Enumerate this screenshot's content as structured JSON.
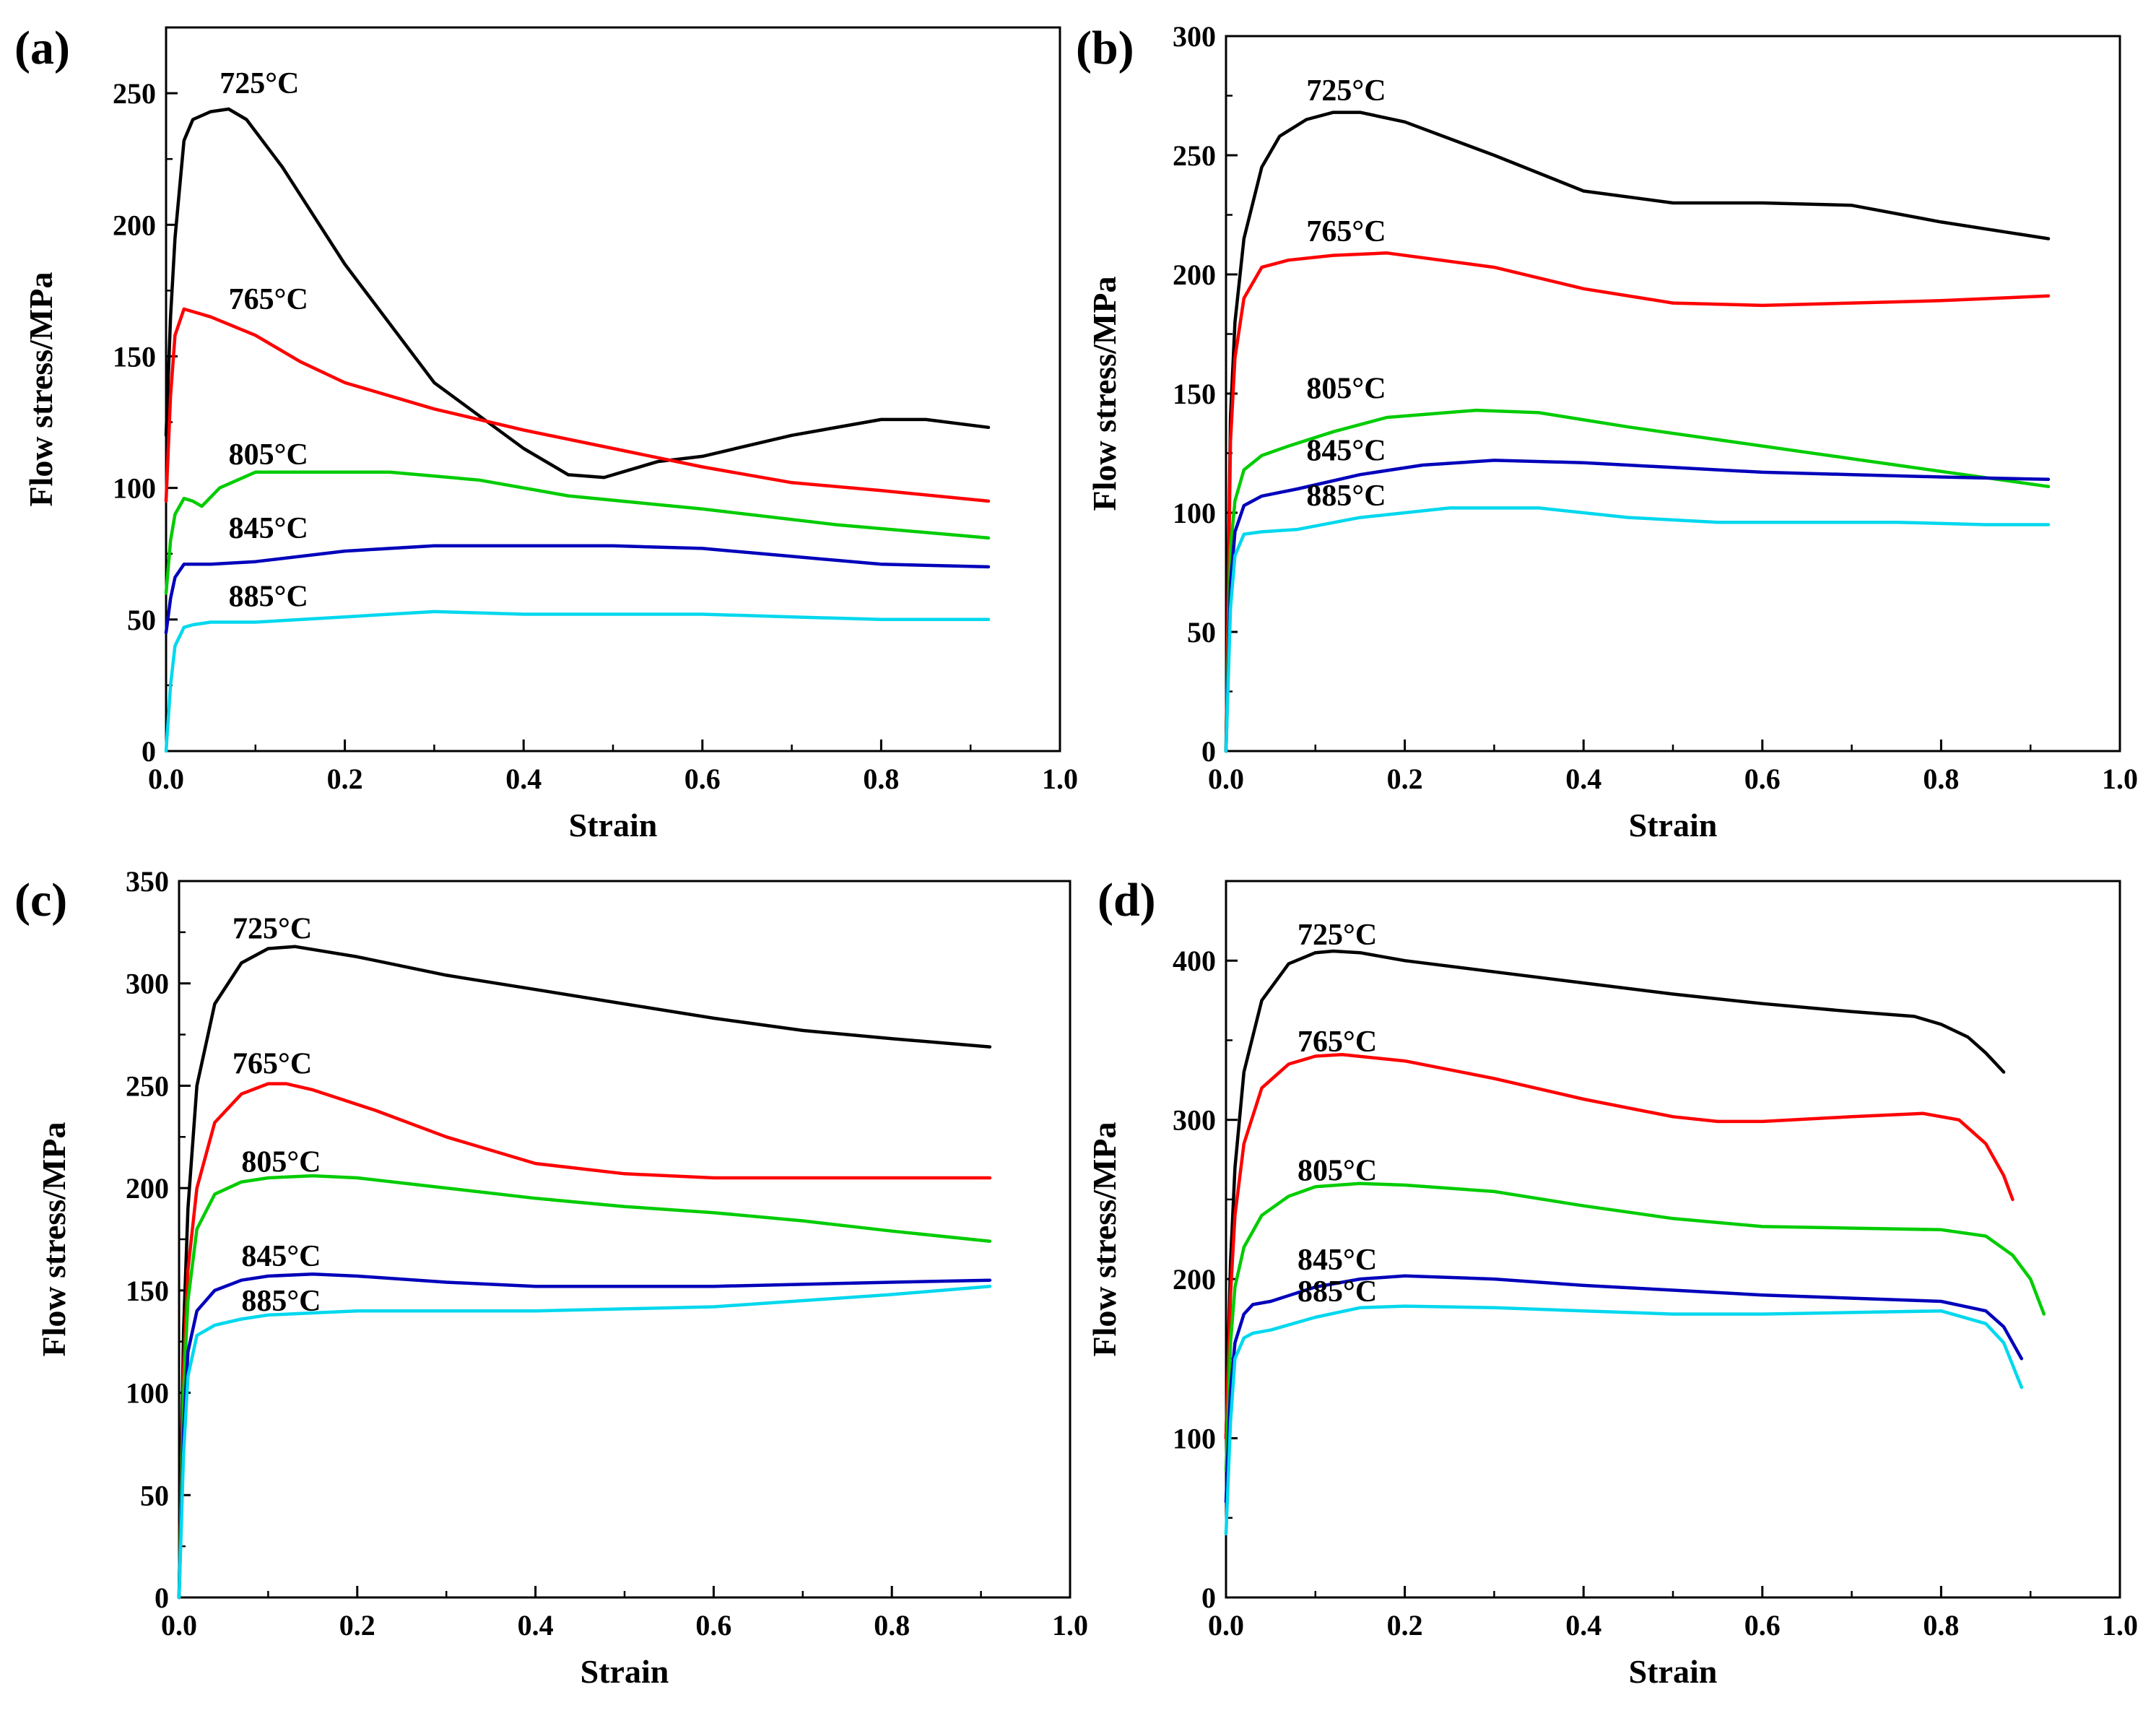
{
  "chart_data": [
    {
      "panel": "(a)",
      "type": "line",
      "xlabel": "Strain",
      "ylabel": "Flow stress/MPa",
      "xlim": [
        0,
        1.0
      ],
      "ylim": [
        0,
        275
      ],
      "xticks": [
        "0.0",
        "0.2",
        "0.4",
        "0.6",
        "0.8",
        "1.0"
      ],
      "xtick_values": [
        0,
        0.2,
        0.4,
        0.6,
        0.8,
        1.0
      ],
      "yticks": [
        "0",
        "50",
        "100",
        "150",
        "200",
        "250"
      ],
      "ytick_values": [
        0,
        50,
        100,
        150,
        200,
        250
      ],
      "series": [
        {
          "name": "725°C",
          "color": "#000000",
          "label_at": [
            0.06,
            250
          ],
          "x": [
            0,
            0.005,
            0.01,
            0.02,
            0.03,
            0.05,
            0.07,
            0.09,
            0.13,
            0.2,
            0.3,
            0.4,
            0.45,
            0.49,
            0.55,
            0.6,
            0.7,
            0.8,
            0.85,
            0.92
          ],
          "y": [
            120,
            165,
            195,
            232,
            240,
            243,
            244,
            240,
            222,
            185,
            140,
            115,
            105,
            104,
            110,
            112,
            120,
            126,
            126,
            123
          ]
        },
        {
          "name": "765°C",
          "color": "#ff0000",
          "label_at": [
            0.07,
            168
          ],
          "x": [
            0,
            0.005,
            0.01,
            0.02,
            0.03,
            0.05,
            0.1,
            0.15,
            0.2,
            0.3,
            0.4,
            0.5,
            0.6,
            0.7,
            0.8,
            0.92
          ],
          "y": [
            95,
            135,
            158,
            168,
            167,
            165,
            158,
            148,
            140,
            130,
            122,
            115,
            108,
            102,
            99,
            95
          ]
        },
        {
          "name": "805°C",
          "color": "#00cc00",
          "label_at": [
            0.07,
            109
          ],
          "x": [
            0,
            0.005,
            0.01,
            0.02,
            0.03,
            0.04,
            0.06,
            0.1,
            0.15,
            0.25,
            0.35,
            0.45,
            0.6,
            0.75,
            0.92
          ],
          "y": [
            60,
            80,
            90,
            96,
            95,
            93,
            100,
            106,
            106,
            106,
            103,
            97,
            92,
            86,
            81
          ]
        },
        {
          "name": "845°C",
          "color": "#0000bb",
          "label_at": [
            0.07,
            81
          ],
          "x": [
            0,
            0.005,
            0.01,
            0.02,
            0.05,
            0.1,
            0.2,
            0.3,
            0.4,
            0.5,
            0.6,
            0.7,
            0.8,
            0.92
          ],
          "y": [
            45,
            58,
            66,
            71,
            71,
            72,
            76,
            78,
            78,
            78,
            77,
            74,
            71,
            70
          ]
        },
        {
          "name": "885°C",
          "color": "#00d8ee",
          "label_at": [
            0.07,
            55
          ],
          "x": [
            0,
            0.005,
            0.01,
            0.02,
            0.03,
            0.05,
            0.1,
            0.2,
            0.3,
            0.4,
            0.5,
            0.6,
            0.7,
            0.8,
            0.92
          ],
          "y": [
            0,
            25,
            40,
            47,
            48,
            49,
            49,
            51,
            53,
            52,
            52,
            52,
            51,
            50,
            50
          ]
        }
      ]
    },
    {
      "panel": "(b)",
      "type": "line",
      "xlabel": "Strain",
      "ylabel": "Flow stress/MPa",
      "xlim": [
        0,
        1.0
      ],
      "ylim": [
        0,
        300
      ],
      "xticks": [
        "0.0",
        "0.2",
        "0.4",
        "0.6",
        "0.8",
        "1.0"
      ],
      "xtick_values": [
        0,
        0.2,
        0.4,
        0.6,
        0.8,
        1.0
      ],
      "yticks": [
        "0",
        "50",
        "100",
        "150",
        "200",
        "250",
        "300"
      ],
      "ytick_values": [
        0,
        50,
        100,
        150,
        200,
        250,
        300
      ],
      "series": [
        {
          "name": "725°C",
          "color": "#000000",
          "label_at": [
            0.09,
            273
          ],
          "x": [
            0,
            0.005,
            0.01,
            0.02,
            0.04,
            0.06,
            0.09,
            0.12,
            0.15,
            0.2,
            0.3,
            0.4,
            0.5,
            0.6,
            0.7,
            0.8,
            0.92
          ],
          "y": [
            0,
            140,
            180,
            215,
            245,
            258,
            265,
            268,
            268,
            264,
            250,
            235,
            230,
            230,
            229,
            222,
            215
          ]
        },
        {
          "name": "765°C",
          "color": "#ff0000",
          "label_at": [
            0.09,
            214
          ],
          "x": [
            0,
            0.005,
            0.01,
            0.02,
            0.04,
            0.07,
            0.12,
            0.18,
            0.3,
            0.4,
            0.5,
            0.6,
            0.7,
            0.8,
            0.92
          ],
          "y": [
            0,
            130,
            165,
            190,
            203,
            206,
            208,
            209,
            203,
            194,
            188,
            187,
            188,
            189,
            191
          ]
        },
        {
          "name": "805°C",
          "color": "#00cc00",
          "label_at": [
            0.09,
            148
          ],
          "x": [
            0,
            0.005,
            0.01,
            0.02,
            0.04,
            0.07,
            0.12,
            0.18,
            0.28,
            0.35,
            0.45,
            0.6,
            0.75,
            0.92
          ],
          "y": [
            0,
            85,
            105,
            118,
            124,
            128,
            134,
            140,
            143,
            142,
            136,
            128,
            120,
            111
          ]
        },
        {
          "name": "845°C",
          "color": "#0000bb",
          "label_at": [
            0.09,
            122
          ],
          "x": [
            0,
            0.005,
            0.01,
            0.02,
            0.04,
            0.08,
            0.15,
            0.22,
            0.3,
            0.4,
            0.5,
            0.6,
            0.7,
            0.8,
            0.92
          ],
          "y": [
            0,
            70,
            92,
            103,
            107,
            110,
            116,
            120,
            122,
            121,
            119,
            117,
            116,
            115,
            114
          ]
        },
        {
          "name": "885°C",
          "color": "#00d8ee",
          "label_at": [
            0.09,
            103
          ],
          "x": [
            0,
            0.005,
            0.01,
            0.02,
            0.04,
            0.08,
            0.15,
            0.25,
            0.35,
            0.45,
            0.55,
            0.65,
            0.75,
            0.85,
            0.92
          ],
          "y": [
            0,
            60,
            82,
            91,
            92,
            93,
            98,
            102,
            102,
            98,
            96,
            96,
            96,
            95,
            95
          ]
        }
      ]
    },
    {
      "panel": "(c)",
      "type": "line",
      "xlabel": "Strain",
      "ylabel": "Flow stress/MPa",
      "xlim": [
        0,
        1.0
      ],
      "ylim": [
        0,
        350
      ],
      "xticks": [
        "0.0",
        "0.2",
        "0.4",
        "0.6",
        "0.8",
        "1.0"
      ],
      "xtick_values": [
        0,
        0.2,
        0.4,
        0.6,
        0.8,
        1.0
      ],
      "yticks": [
        "0",
        "50",
        "100",
        "150",
        "200",
        "250",
        "300",
        "350"
      ],
      "ytick_values": [
        0,
        50,
        100,
        150,
        200,
        250,
        300,
        350
      ],
      "series": [
        {
          "name": "725°C",
          "color": "#000000",
          "label_at": [
            0.06,
            322
          ],
          "x": [
            0,
            0.005,
            0.01,
            0.02,
            0.04,
            0.07,
            0.1,
            0.13,
            0.2,
            0.3,
            0.4,
            0.5,
            0.6,
            0.7,
            0.8,
            0.91
          ],
          "y": [
            0,
            130,
            190,
            250,
            290,
            310,
            317,
            318,
            313,
            304,
            297,
            290,
            283,
            277,
            273,
            269
          ]
        },
        {
          "name": "765°C",
          "color": "#ff0000",
          "label_at": [
            0.06,
            256
          ],
          "x": [
            0,
            0.005,
            0.01,
            0.02,
            0.04,
            0.07,
            0.1,
            0.12,
            0.15,
            0.22,
            0.3,
            0.4,
            0.5,
            0.6,
            0.7,
            0.8,
            0.91
          ],
          "y": [
            0,
            110,
            160,
            200,
            232,
            246,
            251,
            251,
            248,
            238,
            225,
            212,
            207,
            205,
            205,
            205,
            205
          ]
        },
        {
          "name": "805°C",
          "color": "#00cc00",
          "label_at": [
            0.07,
            208
          ],
          "x": [
            0,
            0.005,
            0.01,
            0.02,
            0.04,
            0.07,
            0.1,
            0.15,
            0.2,
            0.3,
            0.4,
            0.5,
            0.6,
            0.7,
            0.8,
            0.91
          ],
          "y": [
            0,
            100,
            145,
            180,
            197,
            203,
            205,
            206,
            205,
            200,
            195,
            191,
            188,
            184,
            179,
            174
          ]
        },
        {
          "name": "845°C",
          "color": "#0000bb",
          "label_at": [
            0.07,
            162
          ],
          "x": [
            0,
            0.005,
            0.01,
            0.02,
            0.04,
            0.07,
            0.1,
            0.15,
            0.2,
            0.3,
            0.4,
            0.5,
            0.6,
            0.7,
            0.8,
            0.91
          ],
          "y": [
            0,
            80,
            120,
            140,
            150,
            155,
            157,
            158,
            157,
            154,
            152,
            152,
            152,
            153,
            154,
            155
          ]
        },
        {
          "name": "885°C",
          "color": "#00d8ee",
          "label_at": [
            0.07,
            140
          ],
          "x": [
            0,
            0.005,
            0.01,
            0.02,
            0.04,
            0.07,
            0.1,
            0.15,
            0.2,
            0.3,
            0.4,
            0.5,
            0.6,
            0.7,
            0.8,
            0.91
          ],
          "y": [
            0,
            70,
            108,
            128,
            133,
            136,
            138,
            139,
            140,
            140,
            140,
            141,
            142,
            145,
            148,
            152
          ]
        }
      ]
    },
    {
      "panel": "(d)",
      "type": "line",
      "xlabel": "Strain",
      "ylabel": "Flow stress/MPa",
      "xlim": [
        0,
        1.0
      ],
      "ylim": [
        0,
        450
      ],
      "xticks": [
        "0.0",
        "0.2",
        "0.4",
        "0.6",
        "0.8",
        "1.0"
      ],
      "xtick_values": [
        0,
        0.2,
        0.4,
        0.6,
        0.8,
        1.0
      ],
      "yticks": [
        "0",
        "100",
        "200",
        "300",
        "400"
      ],
      "ytick_values": [
        0,
        100,
        200,
        300,
        400
      ],
      "series": [
        {
          "name": "725°C",
          "color": "#000000",
          "label_at": [
            0.08,
            410
          ],
          "x": [
            0,
            0.005,
            0.01,
            0.02,
            0.04,
            0.07,
            0.1,
            0.12,
            0.15,
            0.2,
            0.3,
            0.4,
            0.5,
            0.6,
            0.7,
            0.77,
            0.8,
            0.83,
            0.85,
            0.87
          ],
          "y": [
            100,
            210,
            270,
            330,
            375,
            398,
            405,
            406,
            405,
            400,
            393,
            386,
            379,
            373,
            368,
            365,
            360,
            352,
            342,
            330
          ]
        },
        {
          "name": "765°C",
          "color": "#ff0000",
          "label_at": [
            0.08,
            343
          ],
          "x": [
            0,
            0.005,
            0.01,
            0.02,
            0.04,
            0.07,
            0.1,
            0.13,
            0.2,
            0.3,
            0.4,
            0.5,
            0.55,
            0.6,
            0.7,
            0.78,
            0.82,
            0.85,
            0.87,
            0.88
          ],
          "y": [
            100,
            190,
            240,
            285,
            320,
            335,
            340,
            341,
            337,
            326,
            313,
            302,
            299,
            299,
            302,
            304,
            300,
            285,
            265,
            250
          ]
        },
        {
          "name": "805°C",
          "color": "#00cc00",
          "label_at": [
            0.08,
            262
          ],
          "x": [
            0,
            0.005,
            0.01,
            0.02,
            0.04,
            0.07,
            0.1,
            0.15,
            0.2,
            0.3,
            0.4,
            0.5,
            0.6,
            0.7,
            0.8,
            0.85,
            0.88,
            0.9,
            0.915
          ],
          "y": [
            80,
            160,
            195,
            220,
            240,
            252,
            258,
            260,
            259,
            255,
            246,
            238,
            233,
            232,
            231,
            227,
            215,
            200,
            178
          ]
        },
        {
          "name": "845°C",
          "color": "#0000bb",
          "label_at": [
            0.08,
            206
          ],
          "x": [
            0,
            0.005,
            0.01,
            0.02,
            0.03,
            0.05,
            0.1,
            0.15,
            0.2,
            0.3,
            0.4,
            0.5,
            0.6,
            0.7,
            0.8,
            0.85,
            0.87,
            0.89
          ],
          "y": [
            60,
            130,
            160,
            178,
            184,
            186,
            195,
            200,
            202,
            200,
            196,
            193,
            190,
            188,
            186,
            180,
            170,
            150
          ]
        },
        {
          "name": "885°C",
          "color": "#00d8ee",
          "label_at": [
            0.08,
            186
          ],
          "x": [
            0,
            0.005,
            0.01,
            0.02,
            0.03,
            0.05,
            0.1,
            0.15,
            0.2,
            0.3,
            0.4,
            0.5,
            0.6,
            0.7,
            0.8,
            0.85,
            0.87,
            0.89
          ],
          "y": [
            40,
            110,
            150,
            163,
            166,
            168,
            176,
            182,
            183,
            182,
            180,
            178,
            178,
            179,
            180,
            172,
            160,
            132
          ]
        }
      ]
    }
  ]
}
